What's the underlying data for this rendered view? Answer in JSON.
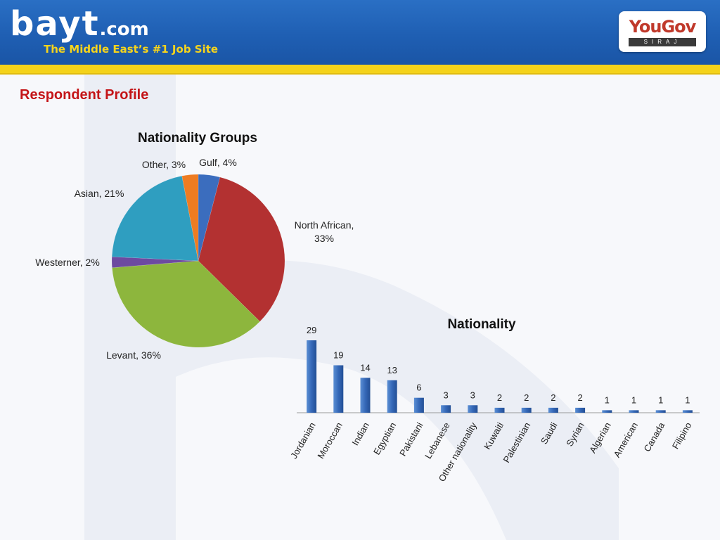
{
  "header": {
    "logo_text": "bayt",
    "logo_domain": ".com",
    "tagline": "The Middle East’s #1 Job Site",
    "partner_name": "YouGov",
    "partner_sub": "SIRAJ"
  },
  "page": {
    "title": "Respondent Profile"
  },
  "chart_data": [
    {
      "type": "pie",
      "title": "Nationality Groups",
      "categories": [
        "Gulf",
        "North African",
        "Levant",
        "Westerner",
        "Asian",
        "Other"
      ],
      "values": [
        4,
        33,
        36,
        2,
        21,
        3
      ],
      "labels": [
        "Gulf, 4%",
        "North African, 33%",
        "Levant, 36%",
        "Westerner, 2%",
        "Asian, 21%",
        "Other, 3%"
      ],
      "colors": [
        "#3b6dbe",
        "#b33131",
        "#8db63d",
        "#6d4aa0",
        "#2f9ec0",
        "#ee7c22"
      ]
    },
    {
      "type": "bar",
      "title": "Nationality",
      "categories": [
        "Jordanian",
        "Moroccan",
        "Indian",
        "Egyptian",
        "Pakistani",
        "Lebanese",
        "Other nationality",
        "Kuwaiti",
        "Palestinian",
        "Saudi",
        "Syrian",
        "Algerian",
        "American",
        "Canada",
        "Filipino"
      ],
      "values": [
        29,
        19,
        14,
        13,
        6,
        3,
        3,
        2,
        2,
        2,
        2,
        1,
        1,
        1,
        1
      ],
      "ylim": [
        0,
        30
      ],
      "color": "#3568b8"
    }
  ]
}
